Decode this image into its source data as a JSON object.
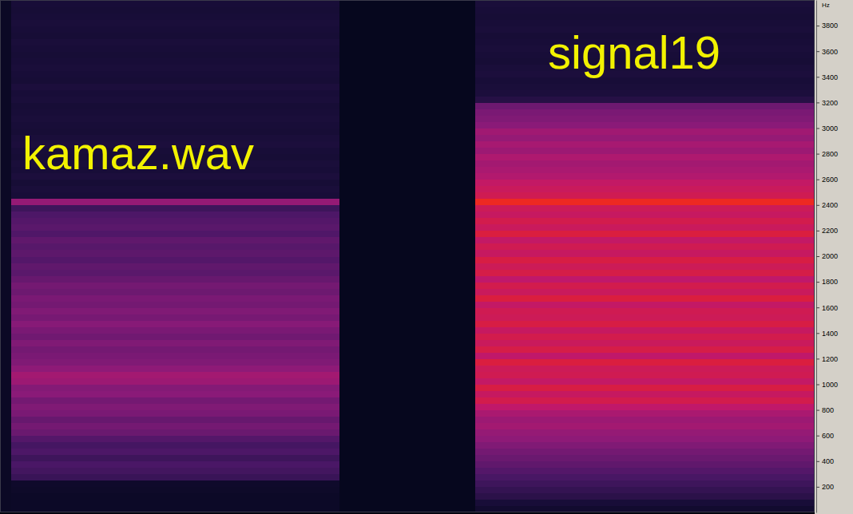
{
  "chart_data": {
    "type": "heatmap",
    "y_label": "Hz",
    "tick_labels": "y",
    "xlim": [
      0,
      72
    ],
    "ylim": [
      0,
      4000
    ],
    "yticks": [
      200,
      400,
      600,
      800,
      1000,
      1200,
      1400,
      1600,
      1800,
      2000,
      2200,
      2400,
      2600,
      2800,
      3000,
      3200,
      3400,
      3600,
      3800
    ],
    "zlim": [
      0,
      100
    ],
    "x_bins": [
      0,
      1,
      30,
      42,
      72
    ],
    "y_bins": [
      0,
      50,
      100,
      150,
      200,
      250,
      300,
      350,
      400,
      450,
      500,
      550,
      600,
      650,
      700,
      750,
      800,
      850,
      900,
      950,
      1000,
      1050,
      1100,
      1150,
      1200,
      1250,
      1300,
      1350,
      1400,
      1450,
      1500,
      1550,
      1600,
      1650,
      1700,
      1750,
      1800,
      1850,
      1900,
      1950,
      2000,
      2050,
      2100,
      2150,
      2200,
      2250,
      2300,
      2350,
      2400,
      2450,
      2500,
      2550,
      2600,
      2650,
      2700,
      2750,
      2800,
      2850,
      2900,
      2950,
      3000,
      3050,
      3100,
      3150,
      3200,
      3250,
      3300,
      3350,
      3400,
      3450,
      3500,
      3550,
      3600,
      3650,
      3700,
      3750,
      3800,
      3850,
      3900,
      3950,
      4000
    ],
    "z": [
      [
        5,
        5,
        5,
        5,
        5,
        5,
        5,
        5,
        5,
        5,
        5,
        5,
        5,
        5,
        5,
        5,
        5,
        5,
        5,
        5,
        5,
        5,
        5,
        5,
        5,
        5,
        5,
        5,
        5,
        5,
        5,
        5,
        5,
        5,
        5,
        5,
        5,
        5,
        5,
        5,
        5,
        5,
        5,
        5,
        5,
        5,
        5,
        5,
        5,
        5,
        5,
        5,
        5,
        5,
        5,
        5,
        5,
        5,
        5,
        5,
        5,
        5,
        5,
        5,
        5,
        5,
        5,
        5,
        5,
        5,
        5,
        5,
        5,
        5,
        5,
        5,
        5,
        5,
        5,
        5
      ],
      [
        6,
        6,
        6,
        7,
        8,
        28,
        32,
        35,
        30,
        36,
        33,
        38,
        45,
        48,
        44,
        50,
        52,
        48,
        55,
        53,
        60,
        62,
        56,
        52,
        50,
        48,
        52,
        47,
        50,
        54,
        49,
        52,
        48,
        50,
        46,
        48,
        44,
        40,
        42,
        38,
        41,
        39,
        42,
        37,
        40,
        38,
        36,
        30,
        58,
        14,
        15,
        13,
        16,
        14,
        15,
        13,
        14,
        16,
        15,
        13,
        14,
        15,
        14,
        13,
        15,
        14,
        16,
        13,
        14,
        15,
        14,
        13,
        14,
        15,
        13,
        14,
        15,
        14,
        13,
        14
      ],
      [
        2,
        2,
        2,
        2,
        2,
        2,
        2,
        2,
        2,
        2,
        2,
        2,
        2,
        2,
        2,
        2,
        2,
        2,
        2,
        2,
        2,
        2,
        2,
        2,
        2,
        2,
        2,
        2,
        2,
        2,
        2,
        2,
        2,
        2,
        2,
        2,
        2,
        2,
        2,
        2,
        2,
        2,
        2,
        2,
        2,
        2,
        2,
        2,
        2,
        2,
        2,
        2,
        2,
        2,
        2,
        2,
        2,
        2,
        2,
        2,
        2,
        2,
        2,
        2,
        2,
        2,
        2,
        2,
        2,
        2,
        2,
        2,
        2,
        2,
        2,
        2,
        2,
        2,
        2,
        2
      ],
      [
        10,
        14,
        22,
        26,
        30,
        34,
        38,
        42,
        45,
        48,
        52,
        56,
        58,
        62,
        60,
        64,
        70,
        76,
        72,
        78,
        71,
        75,
        74,
        79,
        70,
        77,
        73,
        76,
        72,
        78,
        74,
        75,
        71,
        79,
        73,
        76,
        70,
        77,
        74,
        78,
        72,
        75,
        71,
        79,
        73,
        76,
        72,
        74,
        86,
        75,
        73,
        71,
        66,
        64,
        62,
        65,
        60,
        63,
        58,
        61,
        55,
        52,
        50,
        46,
        20,
        16,
        15,
        14,
        16,
        15,
        13,
        14,
        15,
        14,
        13,
        15,
        14,
        13,
        14,
        15
      ]
    ],
    "annotations": [
      {
        "text": "kamaz.wav"
      },
      {
        "text": "signal19"
      }
    ]
  }
}
